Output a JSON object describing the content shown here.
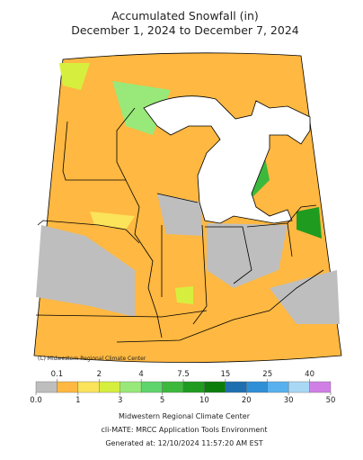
{
  "header": {
    "title": "Accumulated Snowfall (in)",
    "subtitle": "December 1, 2024 to December 7, 2024"
  },
  "map": {
    "credit": "(C) Midwestern Regional Climate Center"
  },
  "legend": {
    "labels": [
      "0.0",
      "0.1",
      "1",
      "2",
      "3",
      "4",
      "5",
      "7.5",
      "10",
      "15",
      "20",
      "25",
      "30",
      "40",
      "50"
    ],
    "colors": [
      "#bebebe",
      "#ffb841",
      "#fbe35a",
      "#d6ef3e",
      "#98e979",
      "#60d46c",
      "#3cb93c",
      "#1f9b1f",
      "#0b7d0b",
      "#1e6fb0",
      "#2f8fd7",
      "#58b1ee",
      "#a9d8f5",
      "#d07fe6"
    ]
  },
  "footer": {
    "lines": [
      "Midwestern Regional Climate Center",
      "cli-MATE: MRCC Application Tools Environment",
      "Generated at: 12/10/2024 11:57:20 AM EST"
    ]
  }
}
